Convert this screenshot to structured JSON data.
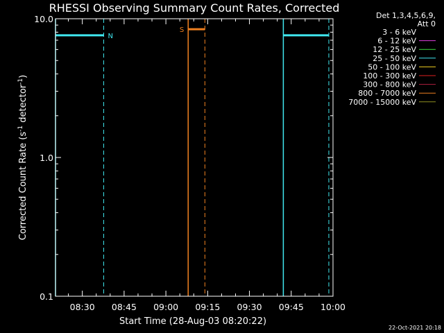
{
  "chart_data": {
    "type": "line",
    "title": "RHESSI Observing Summary Count Rates, Corrected",
    "xlabel": "Start Time (28-Aug-03 08:20:22)",
    "ylabel_main": "Corrected Count Rate (s",
    "ylabel_sup1": "-1",
    "ylabel_mid": " detector",
    "ylabel_sup2": "-1",
    "ylabel_end": ")",
    "yscale": "log",
    "ylim": [
      0.1,
      10.0
    ],
    "xlim": [
      "08:20:22",
      "10:00:00"
    ],
    "x_tick_labels": [
      "08:30",
      "08:45",
      "09:00",
      "09:15",
      "09:30",
      "09:45",
      "10:00"
    ],
    "y_tick_labels": [
      "0.1",
      "1.0",
      "10.0"
    ],
    "legend": {
      "header1": "Det 1,3,4,5,6,9,",
      "header2": "Att 0",
      "entries": [
        {
          "label": "3 - 6 keV",
          "color": "#000000"
        },
        {
          "label": "6 - 12 keV",
          "color": "#e040e0"
        },
        {
          "label": "12 - 25 keV",
          "color": "#40e040"
        },
        {
          "label": "25 - 50 keV",
          "color": "#40e8f0"
        },
        {
          "label": "50 - 100 keV",
          "color": "#f0d020"
        },
        {
          "label": "100 - 300 keV",
          "color": "#e02020"
        },
        {
          "label": "300 - 800 keV",
          "color": "#b02040"
        },
        {
          "label": "800 - 7000 keV",
          "color": "#f08020"
        },
        {
          "label": "7000 - 15000 keV",
          "color": "#909020"
        }
      ]
    },
    "intervals": [
      {
        "flag": "N",
        "color": "#40e8f0",
        "start": "08:20:22",
        "end": "08:37:40",
        "level": 7.6
      },
      {
        "flag": "S",
        "color": "#f08020",
        "start": "09:08:00",
        "end": "09:14:00",
        "level": 8.4
      },
      {
        "flag": "",
        "color": "#40e8f0",
        "start": "09:42:10",
        "end": "09:58:30",
        "level": 7.6
      }
    ],
    "markers": [
      {
        "time": "08:20:22",
        "color": "#40e8f0",
        "style": "solid"
      },
      {
        "time": "08:37:40",
        "color": "#40e8f0",
        "style": "dashed"
      },
      {
        "time": "09:08:00",
        "color": "#f08020",
        "style": "solid"
      },
      {
        "time": "09:14:00",
        "color": "#f08020",
        "style": "dashed"
      },
      {
        "time": "09:42:10",
        "color": "#40e8f0",
        "style": "solid"
      },
      {
        "time": "09:58:30",
        "color": "#40e8f0",
        "style": "dashed"
      }
    ]
  },
  "footer": {
    "date": "22-Oct-2021 20:18"
  }
}
